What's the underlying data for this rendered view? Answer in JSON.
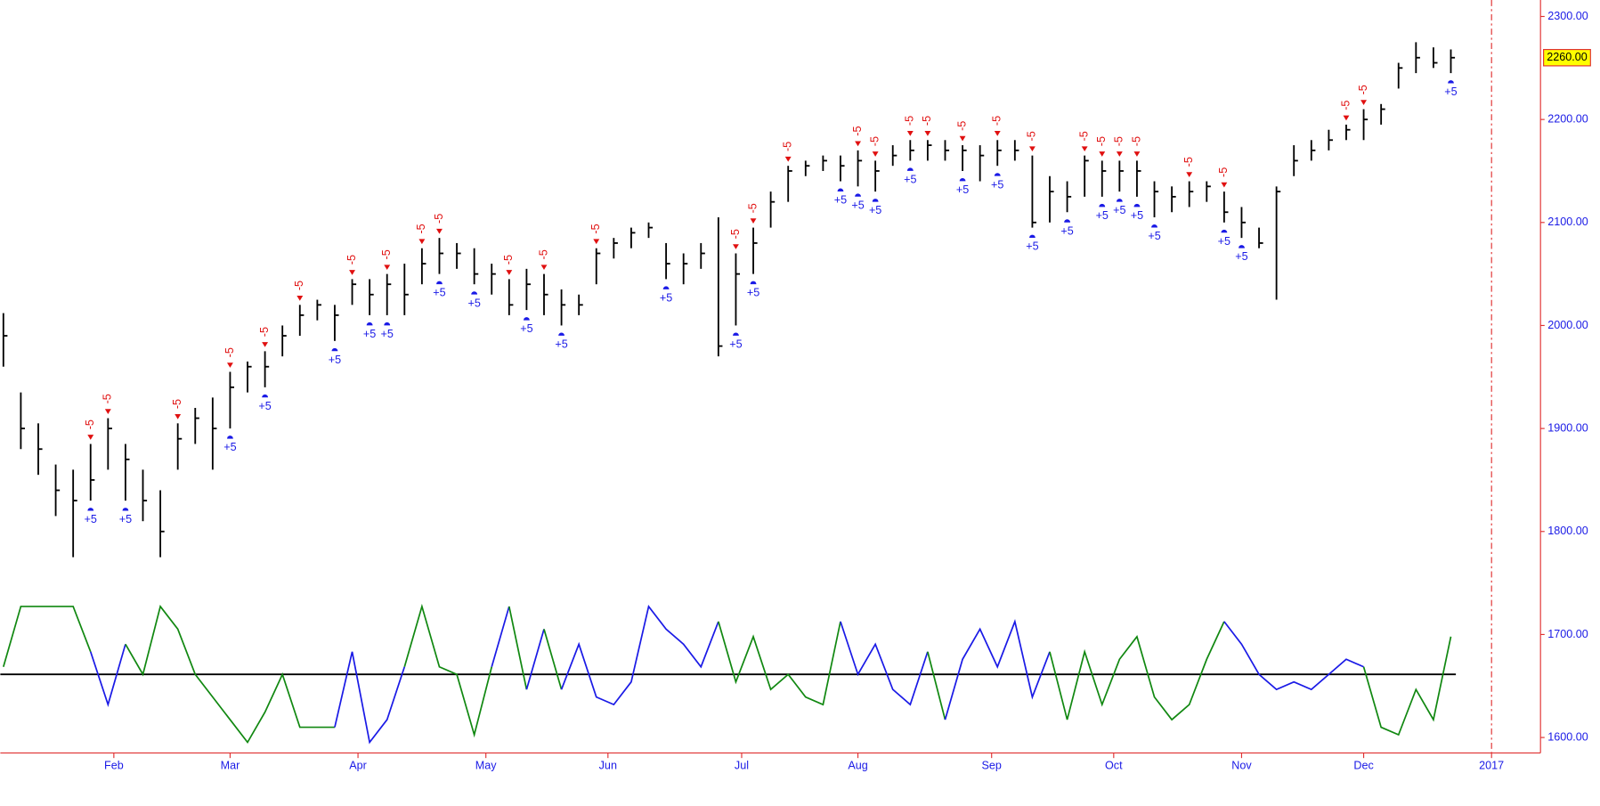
{
  "chart_data": {
    "type": "ohlc",
    "x": [
      0,
      3,
      6,
      9,
      12,
      15,
      18,
      21,
      24,
      27,
      30,
      33,
      36,
      39,
      42,
      45,
      48,
      51,
      54,
      57,
      60,
      63,
      66,
      69,
      72,
      75,
      78,
      81,
      84,
      87,
      90,
      93,
      96,
      99,
      102,
      105,
      108,
      111,
      114,
      117,
      120,
      123,
      126,
      129,
      132,
      135,
      138,
      141,
      144,
      147,
      150,
      153,
      156,
      159,
      162,
      165,
      168,
      171,
      174,
      177,
      180,
      183,
      186,
      189,
      192,
      195,
      198,
      201,
      204,
      207,
      210,
      213,
      216,
      219,
      222,
      225,
      228,
      231,
      234,
      237,
      240,
      243,
      246,
      249
    ],
    "high": [
      2012,
      1935,
      1905,
      1865,
      1860,
      1885,
      1910,
      1885,
      1860,
      1840,
      1905,
      1920,
      1930,
      1955,
      1965,
      1975,
      2000,
      2020,
      2025,
      2020,
      2045,
      2045,
      2050,
      2060,
      2075,
      2085,
      2080,
      2075,
      2060,
      2045,
      2055,
      2050,
      2035,
      2030,
      2075,
      2085,
      2095,
      2100,
      2080,
      2070,
      2080,
      2105,
      2070,
      2095,
      2130,
      2155,
      2160,
      2165,
      2165,
      2170,
      2160,
      2175,
      2180,
      2180,
      2180,
      2175,
      2175,
      2180,
      2180,
      2165,
      2145,
      2140,
      2165,
      2160,
      2160,
      2160,
      2140,
      2135,
      2140,
      2140,
      2130,
      2115,
      2095,
      2135,
      2175,
      2180,
      2190,
      2195,
      2210,
      2215,
      2255,
      2275,
      2270,
      2268
    ],
    "low": [
      1960,
      1880,
      1855,
      1815,
      1775,
      1830,
      1860,
      1830,
      1810,
      1775,
      1860,
      1885,
      1860,
      1900,
      1935,
      1940,
      1970,
      1990,
      2005,
      1985,
      2020,
      2010,
      2010,
      2010,
      2040,
      2050,
      2055,
      2040,
      2030,
      2010,
      2015,
      2010,
      2000,
      2010,
      2040,
      2065,
      2075,
      2085,
      2045,
      2040,
      2055,
      1970,
      2000,
      2050,
      2095,
      2120,
      2145,
      2150,
      2140,
      2135,
      2130,
      2155,
      2160,
      2160,
      2160,
      2150,
      2140,
      2155,
      2160,
      2095,
      2100,
      2110,
      2125,
      2125,
      2130,
      2125,
      2105,
      2110,
      2115,
      2120,
      2100,
      2085,
      2075,
      2025,
      2145,
      2160,
      2170,
      2180,
      2180,
      2195,
      2230,
      2245,
      2250,
      2245
    ],
    "close": [
      1990,
      1900,
      1880,
      1840,
      1830,
      1850,
      1900,
      1870,
      1830,
      1800,
      1890,
      1910,
      1900,
      1940,
      1960,
      1960,
      1990,
      2010,
      2020,
      2010,
      2040,
      2030,
      2040,
      2030,
      2060,
      2070,
      2070,
      2050,
      2050,
      2020,
      2040,
      2030,
      2020,
      2020,
      2070,
      2080,
      2090,
      2095,
      2060,
      2060,
      2070,
      1980,
      2050,
      2080,
      2120,
      2150,
      2155,
      2160,
      2155,
      2160,
      2150,
      2165,
      2170,
      2175,
      2170,
      2170,
      2165,
      2170,
      2170,
      2100,
      2130,
      2125,
      2160,
      2150,
      2150,
      2150,
      2130,
      2125,
      2130,
      2135,
      2110,
      2100,
      2080,
      2130,
      2160,
      2170,
      2180,
      2190,
      2200,
      2210,
      2250,
      2260,
      2255,
      2260
    ],
    "color": "#000000",
    "ylim": [
      1585,
      2315
    ],
    "yticks": [
      {
        "value": 1600,
        "label": "1600.00"
      },
      {
        "value": 1700,
        "label": "1700.00"
      },
      {
        "value": 1800,
        "label": "1800.00"
      },
      {
        "value": 1900,
        "label": "1900.00"
      },
      {
        "value": 2000,
        "label": "2000.00"
      },
      {
        "value": 2100,
        "label": "2100.00"
      },
      {
        "value": 2200,
        "label": "2200.00"
      },
      {
        "value": 2300,
        "label": "2300.00"
      }
    ],
    "last_price": {
      "value": 2260,
      "label": "2260.00"
    },
    "xlim": [
      0,
      256
    ],
    "xticks": [
      {
        "value": 19,
        "label": "Feb"
      },
      {
        "value": 39,
        "label": "Mar"
      },
      {
        "value": 61,
        "label": "Apr"
      },
      {
        "value": 83,
        "label": "May"
      },
      {
        "value": 104,
        "label": "Jun"
      },
      {
        "value": 127,
        "label": "Jul"
      },
      {
        "value": 147,
        "label": "Aug"
      },
      {
        "value": 170,
        "label": "Sep"
      },
      {
        "value": 191,
        "label": "Oct"
      },
      {
        "value": 213,
        "label": "Nov"
      },
      {
        "value": 234,
        "label": "Dec"
      },
      {
        "value": 256,
        "label": "2017"
      }
    ],
    "signals": [
      {
        "x": 15,
        "label": "-5"
      },
      {
        "x": 18,
        "label": "-5"
      },
      {
        "x": 30,
        "label": "-5"
      },
      {
        "x": 39,
        "label": "-5"
      },
      {
        "x": 45,
        "label": "-5"
      },
      {
        "x": 51,
        "label": "-5"
      },
      {
        "x": 60,
        "label": "-5"
      },
      {
        "x": 66,
        "label": "-5"
      },
      {
        "x": 72,
        "label": "-5"
      },
      {
        "x": 75,
        "label": "-5"
      },
      {
        "x": 87,
        "label": "-5"
      },
      {
        "x": 93,
        "label": "-5"
      },
      {
        "x": 102,
        "label": "-5"
      },
      {
        "x": 126,
        "label": "-5"
      },
      {
        "x": 129,
        "label": "-5"
      },
      {
        "x": 135,
        "label": "-5"
      },
      {
        "x": 147,
        "label": "-5"
      },
      {
        "x": 150,
        "label": "-5"
      },
      {
        "x": 156,
        "label": "-5"
      },
      {
        "x": 159,
        "label": "-5"
      },
      {
        "x": 165,
        "label": "-5"
      },
      {
        "x": 171,
        "label": "-5"
      },
      {
        "x": 177,
        "label": "-5"
      },
      {
        "x": 186,
        "label": "-5"
      },
      {
        "x": 189,
        "label": "-5"
      },
      {
        "x": 192,
        "label": "-5"
      },
      {
        "x": 195,
        "label": "-5"
      },
      {
        "x": 204,
        "label": "-5"
      },
      {
        "x": 210,
        "label": "-5"
      },
      {
        "x": 231,
        "label": "-5"
      },
      {
        "x": 234,
        "label": "-5"
      },
      {
        "x": 15,
        "label": "+5"
      },
      {
        "x": 21,
        "label": "+5"
      },
      {
        "x": 39,
        "label": "+5"
      },
      {
        "x": 45,
        "label": "+5"
      },
      {
        "x": 57,
        "label": "+5"
      },
      {
        "x": 63,
        "label": "+5"
      },
      {
        "x": 66,
        "label": "+5"
      },
      {
        "x": 75,
        "label": "+5"
      },
      {
        "x": 81,
        "label": "+5"
      },
      {
        "x": 90,
        "label": "+5"
      },
      {
        "x": 96,
        "label": "+5"
      },
      {
        "x": 114,
        "label": "+5"
      },
      {
        "x": 126,
        "label": "+5"
      },
      {
        "x": 129,
        "label": "+5"
      },
      {
        "x": 144,
        "label": "+5"
      },
      {
        "x": 147,
        "label": "+5"
      },
      {
        "x": 150,
        "label": "+5"
      },
      {
        "x": 156,
        "label": "+5"
      },
      {
        "x": 165,
        "label": "+5"
      },
      {
        "x": 171,
        "label": "+5"
      },
      {
        "x": 177,
        "label": "+5"
      },
      {
        "x": 183,
        "label": "+5"
      },
      {
        "x": 189,
        "label": "+5"
      },
      {
        "x": 192,
        "label": "+5"
      },
      {
        "x": 195,
        "label": "+5"
      },
      {
        "x": 198,
        "label": "+5"
      },
      {
        "x": 210,
        "label": "+5"
      },
      {
        "x": 213,
        "label": "+5"
      },
      {
        "x": 249,
        "label": "+5"
      }
    ],
    "oscillator": {
      "ylim": [
        -1,
        1
      ],
      "reference_line": 0,
      "values": [
        0.1,
        0.9,
        0.9,
        0.9,
        0.9,
        0.3,
        -0.4,
        0.4,
        0,
        0.9,
        0.6,
        0,
        -0.3,
        -0.6,
        -0.9,
        -0.5,
        0,
        -0.7,
        -0.7,
        -0.7,
        0.3,
        -0.9,
        -0.6,
        0.1,
        0.9,
        0.1,
        0,
        -0.8,
        0.1,
        0.9,
        -0.2,
        0.6,
        -0.2,
        0.4,
        -0.3,
        -0.4,
        -0.1,
        0.9,
        0.6,
        0.4,
        0.1,
        0.7,
        -0.1,
        0.5,
        -0.2,
        0,
        -0.3,
        -0.4,
        0.7,
        0,
        0.4,
        -0.2,
        -0.4,
        0.3,
        -0.6,
        0.2,
        0.6,
        0.1,
        0.7,
        -0.3,
        0.3,
        -0.6,
        0.3,
        -0.4,
        0.2,
        0.5,
        -0.3,
        -0.6,
        -0.4,
        0.2,
        0.7,
        0.4,
        0,
        -0.2,
        -0.1,
        -0.2,
        0,
        0.2,
        0.1,
        -0.7,
        -0.8,
        -0.2,
        -0.6,
        0.5
      ],
      "colors": [
        "#118811",
        "#118811",
        "#118811",
        "#118811",
        "#118811",
        "#1a1ae6",
        "#1a1ae6",
        "#118811",
        "#118811",
        "#118811",
        "#118811",
        "#118811",
        "#118811",
        "#118811",
        "#118811",
        "#118811",
        "#118811",
        "#118811",
        "#118811",
        "#1a1ae6",
        "#1a1ae6",
        "#1a1ae6",
        "#1a1ae6",
        "#118811",
        "#118811",
        "#118811",
        "#118811",
        "#118811",
        "#1a1ae6",
        "#118811",
        "#1a1ae6",
        "#118811",
        "#1a1ae6",
        "#1a1ae6",
        "#1a1ae6",
        "#1a1ae6",
        "#1a1ae6",
        "#1a1ae6",
        "#1a1ae6",
        "#1a1ae6",
        "#1a1ae6",
        "#118811",
        "#118811",
        "#118811",
        "#118811",
        "#118811",
        "#118811",
        "#118811",
        "#1a1ae6",
        "#1a1ae6",
        "#1a1ae6",
        "#1a1ae6",
        "#1a1ae6",
        "#118811",
        "#1a1ae6",
        "#1a1ae6",
        "#1a1ae6",
        "#1a1ae6",
        "#1a1ae6",
        "#1a1ae6",
        "#118811",
        "#118811",
        "#118811",
        "#118811",
        "#118811",
        "#118811",
        "#118811",
        "#118811",
        "#118811",
        "#118811",
        "#1a1ae6",
        "#1a1ae6",
        "#1a1ae6",
        "#1a1ae6",
        "#1a1ae6",
        "#1a1ae6",
        "#1a1ae6",
        "#1a1ae6",
        "#118811",
        "#118811",
        "#118811",
        "#118811",
        "#118811",
        "#118811"
      ]
    }
  }
}
